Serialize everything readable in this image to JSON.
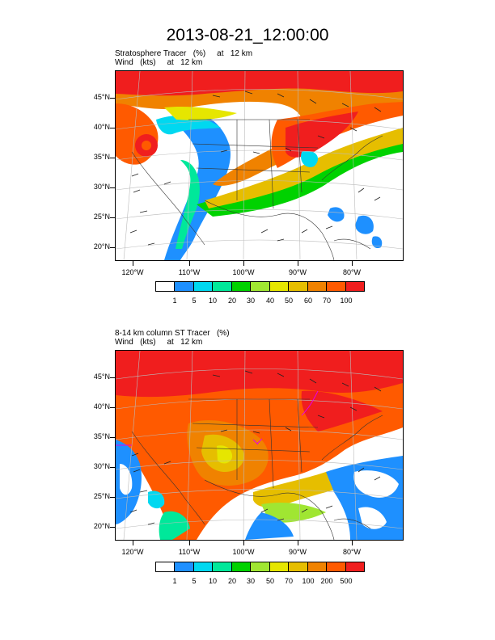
{
  "title": "2013-08-21_12:00:00",
  "panel1": {
    "line1": "Stratosphere Tracer   (%)     at   12 km",
    "line2": "Wind   (kts)     at   12 km",
    "cbar_labels": [
      "1",
      "5",
      "10",
      "20",
      "30",
      "40",
      "50",
      "60",
      "70",
      "100"
    ]
  },
  "panel2": {
    "line1": "8-14 km column ST Tracer   (%)",
    "line2": "Wind   (kts)     at   12 km",
    "cbar_labels": [
      "1",
      "5",
      "10",
      "20",
      "30",
      "50",
      "70",
      "100",
      "200",
      "500"
    ]
  },
  "lat_labels": [
    "45°N",
    "40°N",
    "35°N",
    "30°N",
    "25°N",
    "20°N"
  ],
  "lon_labels": [
    "120°W",
    "110°W",
    "100°W",
    "90°W",
    "80°W"
  ],
  "colors": [
    "#ffffff",
    "#1e90ff",
    "#00d8f0",
    "#00e89a",
    "#00d200",
    "#a0e632",
    "#e6e600",
    "#e6be00",
    "#f08200",
    "#ff5a00",
    "#f01e1e"
  ]
}
